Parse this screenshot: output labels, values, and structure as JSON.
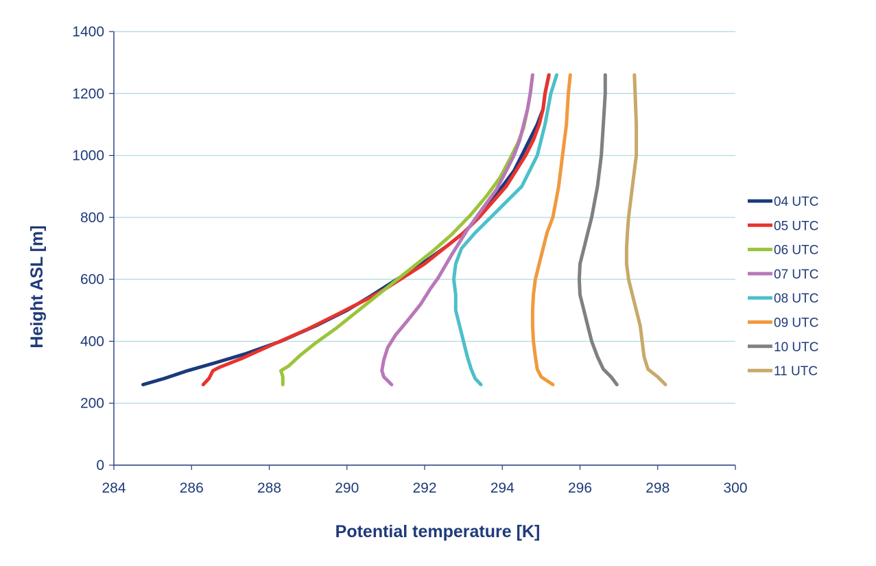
{
  "chart_data": {
    "type": "line",
    "xlabel": "Potential temperature [K]",
    "ylabel": "Height ASL [m]",
    "xlim": [
      284,
      300
    ],
    "ylim": [
      0,
      1400
    ],
    "xticks": [
      284,
      286,
      288,
      290,
      292,
      294,
      296,
      298,
      300
    ],
    "yticks": [
      0,
      200,
      400,
      600,
      800,
      1000,
      1200,
      1400
    ],
    "grid": "horizontal",
    "legend_position": "right",
    "series": [
      {
        "name": "04 UTC",
        "color": "#1a3a7c",
        "x": [
          284.75,
          285.3,
          285.9,
          286.6,
          287.4,
          288.3,
          289.2,
          290.0,
          290.6,
          291.1,
          291.6,
          292.1,
          292.6,
          293.0,
          293.4,
          293.7,
          294.0,
          294.3,
          294.5,
          294.7,
          294.9,
          295.05,
          295.1,
          295.2
        ],
        "y": [
          260,
          280,
          305,
          330,
          360,
          400,
          450,
          500,
          545,
          585,
          625,
          665,
          710,
          750,
          800,
          850,
          900,
          950,
          1000,
          1050,
          1100,
          1150,
          1200,
          1260
        ]
      },
      {
        "name": "05 UTC",
        "color": "#e8332e",
        "x": [
          286.3,
          286.45,
          286.55,
          286.7,
          287.3,
          288.1,
          289.0,
          289.8,
          290.5,
          291.0,
          291.5,
          292.0,
          292.5,
          293.0,
          293.4,
          293.75,
          294.1,
          294.35,
          294.6,
          294.8,
          294.95,
          295.05,
          295.1,
          295.2
        ],
        "y": [
          260,
          280,
          305,
          315,
          345,
          390,
          440,
          490,
          535,
          570,
          610,
          650,
          700,
          750,
          800,
          850,
          900,
          950,
          1000,
          1050,
          1100,
          1150,
          1200,
          1260
        ]
      },
      {
        "name": "06 UTC",
        "color": "#9bc43a",
        "x": [
          288.35,
          288.35,
          288.3,
          288.5,
          288.8,
          289.2,
          289.7,
          290.2,
          290.7,
          291.1,
          291.6,
          292.2,
          292.7,
          293.2,
          293.6,
          293.95,
          294.2,
          294.4,
          294.55,
          294.65,
          294.72,
          294.78
        ],
        "y": [
          260,
          285,
          305,
          320,
          355,
          395,
          440,
          490,
          540,
          580,
          630,
          690,
          745,
          810,
          870,
          930,
          990,
          1040,
          1090,
          1150,
          1200,
          1260
        ]
      },
      {
        "name": "07 UTC",
        "color": "#b778b8",
        "x": [
          291.15,
          290.95,
          290.9,
          290.95,
          291.05,
          291.25,
          291.55,
          291.9,
          292.15,
          292.35,
          292.7,
          293.1,
          293.5,
          293.85,
          294.1,
          294.3,
          294.45,
          294.55,
          294.65,
          294.72,
          294.78
        ],
        "y": [
          260,
          285,
          305,
          340,
          380,
          420,
          465,
          520,
          570,
          605,
          680,
          760,
          830,
          890,
          950,
          1000,
          1050,
          1100,
          1150,
          1200,
          1260
        ]
      },
      {
        "name": "08 UTC",
        "color": "#4cc0c9",
        "x": [
          293.45,
          293.3,
          293.2,
          293.1,
          293.0,
          292.9,
          292.8,
          292.8,
          292.75,
          292.8,
          292.95,
          293.3,
          293.7,
          294.1,
          294.5,
          294.7,
          294.9,
          295.1,
          295.25,
          295.4
        ],
        "y": [
          260,
          280,
          310,
          350,
          400,
          450,
          500,
          550,
          600,
          650,
          700,
          750,
          800,
          850,
          900,
          950,
          1000,
          1100,
          1200,
          1260
        ]
      },
      {
        "name": "09 UTC",
        "color": "#f09a3e",
        "x": [
          295.3,
          295.0,
          294.9,
          294.85,
          294.8,
          294.78,
          294.78,
          294.8,
          294.85,
          294.95,
          295.05,
          295.15,
          295.3,
          295.45,
          295.55,
          295.65,
          295.7,
          295.75
        ],
        "y": [
          260,
          285,
          310,
          350,
          400,
          450,
          500,
          550,
          600,
          650,
          700,
          750,
          800,
          900,
          1000,
          1100,
          1200,
          1260
        ]
      },
      {
        "name": "10 UTC",
        "color": "#808080",
        "x": [
          296.95,
          296.8,
          296.6,
          296.45,
          296.3,
          296.2,
          296.1,
          296.0,
          295.98,
          296.0,
          296.1,
          296.2,
          296.3,
          296.45,
          296.55,
          296.6,
          296.65,
          296.65
        ],
        "y": [
          260,
          285,
          310,
          350,
          400,
          450,
          500,
          550,
          600,
          650,
          700,
          750,
          800,
          900,
          1000,
          1100,
          1200,
          1260
        ]
      },
      {
        "name": "11 UTC",
        "color": "#c7a96a",
        "x": [
          298.2,
          298.0,
          297.75,
          297.65,
          297.6,
          297.55,
          297.45,
          297.35,
          297.25,
          297.2,
          297.2,
          297.22,
          297.25,
          297.35,
          297.45,
          297.45,
          297.42,
          297.4
        ],
        "y": [
          260,
          285,
          310,
          350,
          400,
          450,
          500,
          550,
          600,
          650,
          700,
          750,
          800,
          900,
          1000,
          1100,
          1200,
          1260
        ]
      }
    ]
  }
}
